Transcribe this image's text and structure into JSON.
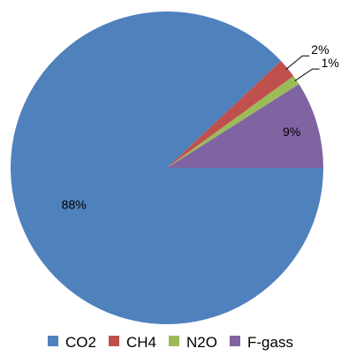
{
  "chart_data": {
    "type": "pie",
    "categories": [
      "CO2",
      "CH4",
      "N2O",
      "F-gass"
    ],
    "values": [
      88,
      2,
      1,
      9
    ],
    "labels": [
      "88%",
      "2%",
      "1%",
      "9%"
    ],
    "colors": [
      "#4F81BD",
      "#C0504D",
      "#9BBB59",
      "#8064A2"
    ],
    "start_angle_deg": 0,
    "direction": "counterclockwise",
    "legend_position": "bottom"
  }
}
